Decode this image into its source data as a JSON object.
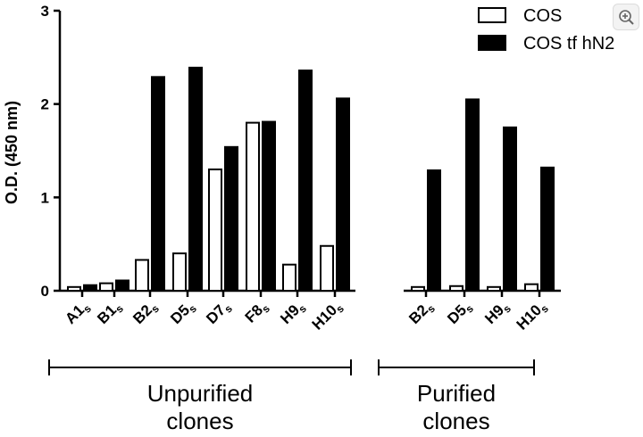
{
  "chart_data": {
    "type": "bar",
    "ylabel": "O.D. (450 nm)",
    "ylim": [
      0,
      3
    ],
    "yticks": [
      0,
      1,
      2,
      3
    ],
    "series": [
      {
        "name": "COS",
        "color": "#ffffff"
      },
      {
        "name": "COS tf hN2",
        "color": "#000000"
      }
    ],
    "legend_position": "top-right",
    "groups": [
      {
        "label": "Unpurified clones",
        "label_lines": [
          "Unpurified",
          "clones"
        ],
        "categories": [
          {
            "main": "A1",
            "sub": "s",
            "values": [
              0.04,
              0.06
            ]
          },
          {
            "main": "B1",
            "sub": "s",
            "values": [
              0.08,
              0.11
            ]
          },
          {
            "main": "B2",
            "sub": "s",
            "values": [
              0.33,
              2.29
            ]
          },
          {
            "main": "D5",
            "sub": "s",
            "values": [
              0.4,
              2.39
            ]
          },
          {
            "main": "D7",
            "sub": "s",
            "values": [
              1.3,
              1.54
            ]
          },
          {
            "main": "F8",
            "sub": "s",
            "values": [
              1.8,
              1.81
            ]
          },
          {
            "main": "H9",
            "sub": "s",
            "values": [
              0.28,
              2.36
            ]
          },
          {
            "main": "H10",
            "sub": "s",
            "values": [
              0.48,
              2.06
            ]
          }
        ]
      },
      {
        "label": "Purified clones",
        "label_lines": [
          "Purified",
          "clones"
        ],
        "categories": [
          {
            "main": "B2",
            "sub": "s",
            "values": [
              0.04,
              1.29
            ]
          },
          {
            "main": "D5",
            "sub": "s",
            "values": [
              0.05,
              2.05
            ]
          },
          {
            "main": "H9",
            "sub": "s",
            "values": [
              0.04,
              1.75
            ]
          },
          {
            "main": "H10",
            "sub": "s",
            "values": [
              0.07,
              1.32
            ]
          }
        ]
      }
    ]
  },
  "ui": {
    "zoom_button_icon": "zoom-in-icon"
  }
}
